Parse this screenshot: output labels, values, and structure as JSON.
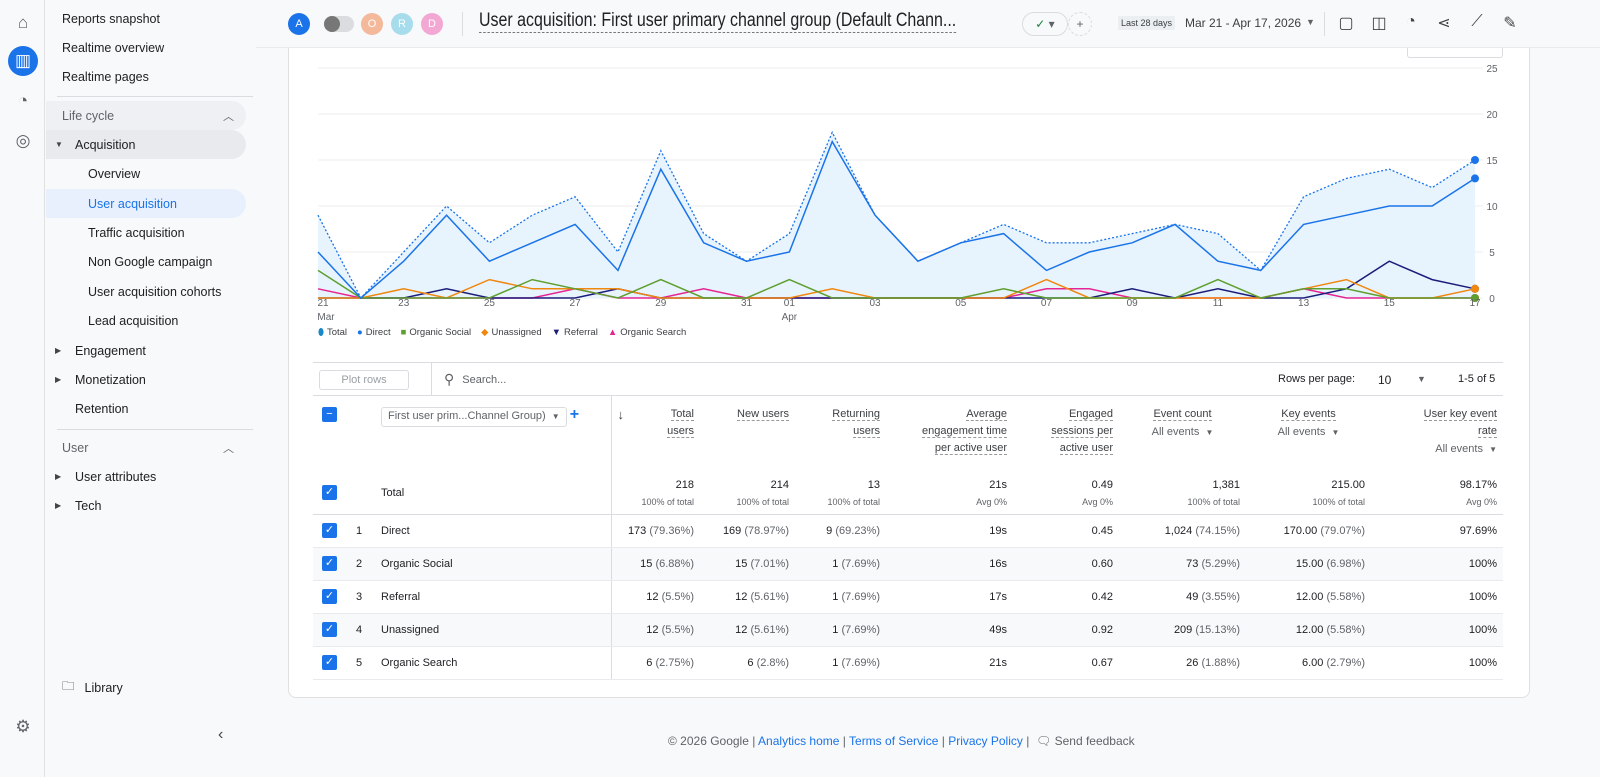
{
  "rail": {
    "icons": [
      "home-icon",
      "reports-icon",
      "explore-icon",
      "advertising-icon",
      "settings-icon"
    ]
  },
  "sidebar": {
    "top_items": [
      "Reports snapshot",
      "Realtime overview",
      "Realtime pages"
    ],
    "lifecycle": "Life cycle",
    "acquisition": "Acquisition",
    "acq_items": [
      "Overview",
      "User acquisition",
      "Traffic acquisition",
      "Non Google campaign",
      "User acquisition cohorts",
      "Lead acquisition"
    ],
    "engagement": "Engagement",
    "monetization": "Monetization",
    "retention": "Retention",
    "user_section": "User",
    "user_attributes": "User attributes",
    "tech": "Tech",
    "library": "Library"
  },
  "header": {
    "avatars": [
      {
        "letter": "A",
        "color": "#1a73e8"
      },
      {
        "letter": "O",
        "color": "#f4b89a"
      },
      {
        "letter": "R",
        "color": "#a6dcec"
      },
      {
        "letter": "D",
        "color": "#f2a8d2"
      }
    ],
    "title": "User acquisition: First user primary channel group (Default Chann...",
    "date_badge": "Last 28 days",
    "date_range": "Mar 21 - Apr 17, 2026"
  },
  "chart_data": {
    "type": "line",
    "x": [
      "21\nMar",
      "22",
      "23",
      "24",
      "25",
      "26",
      "27",
      "28",
      "29",
      "30",
      "31",
      "01\nApr",
      "02",
      "03",
      "04",
      "05",
      "06",
      "07",
      "08",
      "09",
      "10",
      "11",
      "12",
      "13",
      "14",
      "15",
      "16",
      "17"
    ],
    "x_tick_labels": [
      "21",
      "Mar",
      "23",
      "25",
      "27",
      "29",
      "31",
      "01",
      "Apr",
      "03",
      "05",
      "07",
      "09",
      "11",
      "13",
      "15",
      "17"
    ],
    "ylim": [
      0,
      25
    ],
    "y_ticks": [
      "0",
      "5",
      "10",
      "15",
      "20",
      "25"
    ],
    "series": [
      {
        "name": "Total",
        "color": "#1a73e8",
        "values": [
          9,
          0,
          5,
          10,
          6,
          9,
          11,
          5,
          16,
          7,
          4,
          7,
          18,
          9,
          4,
          6,
          8,
          6,
          6,
          7,
          8,
          7,
          3,
          11,
          13,
          14,
          12,
          15
        ]
      },
      {
        "name": "Direct",
        "color": "#1a73e8",
        "values": [
          5,
          0,
          4,
          9,
          4,
          6,
          8,
          3,
          14,
          6,
          4,
          5,
          17,
          9,
          4,
          6,
          7,
          3,
          5,
          6,
          8,
          4,
          3,
          8,
          9,
          10,
          10,
          13
        ]
      },
      {
        "name": "Organic Social",
        "color": "#5e9f2e",
        "values": [
          3,
          0,
          0,
          0,
          0,
          2,
          1,
          0,
          2,
          0,
          0,
          2,
          0,
          0,
          0,
          0,
          1,
          0,
          0,
          0,
          0,
          2,
          0,
          1,
          1,
          0,
          0,
          0
        ]
      },
      {
        "name": "Unassigned",
        "color": "#f0870f",
        "values": [
          0,
          0,
          1,
          0,
          2,
          1,
          1,
          1,
          0,
          0,
          0,
          0,
          1,
          0,
          0,
          0,
          0,
          2,
          0,
          0,
          0,
          0,
          0,
          1,
          2,
          0,
          0,
          1
        ]
      },
      {
        "name": "Referral",
        "color": "#1c1c7a",
        "values": [
          0,
          0,
          0,
          1,
          0,
          0,
          0,
          1,
          0,
          0,
          0,
          0,
          0,
          0,
          0,
          0,
          0,
          0,
          0,
          1,
          0,
          1,
          0,
          0,
          1,
          4,
          2,
          1
        ]
      },
      {
        "name": "Organic Search",
        "color": "#e52592",
        "values": [
          1,
          0,
          0,
          0,
          0,
          0,
          1,
          0,
          0,
          1,
          0,
          0,
          0,
          0,
          0,
          0,
          0,
          1,
          1,
          0,
          0,
          0,
          0,
          1,
          0,
          0,
          0,
          0
        ]
      }
    ]
  },
  "table": {
    "plot_rows": "Plot rows",
    "search_placeholder": "Search...",
    "rows_per_page_label": "Rows per page:",
    "rows_per_page": "10",
    "pagination": "1-5 of 5",
    "dimension": "First user prim...Channel Group)",
    "columns": [
      {
        "l1": "Total",
        "l2": "users",
        "sub": ""
      },
      {
        "l1": "New users",
        "l2": "",
        "sub": ""
      },
      {
        "l1": "Returning",
        "l2": "users",
        "sub": ""
      },
      {
        "l1": "Average",
        "l2": "engagement time",
        "l3": "per active user",
        "sub": ""
      },
      {
        "l1": "Engaged",
        "l2": "sessions per",
        "l3": "active user",
        "sub": ""
      },
      {
        "l1": "Event count",
        "l2": "",
        "sub": "All events"
      },
      {
        "l1": "Key events",
        "l2": "",
        "sub": "All events"
      },
      {
        "l1": "User key event",
        "l2": "rate",
        "sub": "All events"
      }
    ],
    "total": {
      "label": "Total",
      "values": [
        "218",
        "214",
        "13",
        "21s",
        "0.49",
        "1,381",
        "215.00",
        "98.17%"
      ],
      "subs": [
        "100% of total",
        "100% of total",
        "100% of total",
        "Avg 0%",
        "Avg 0%",
        "100% of total",
        "100% of total",
        "Avg 0%"
      ]
    },
    "rows": [
      {
        "rank": "1",
        "name": "Direct",
        "cells": [
          [
            "173",
            "(79.36%)"
          ],
          [
            "169",
            "(78.97%)"
          ],
          [
            "9",
            "(69.23%)"
          ],
          [
            "19s",
            ""
          ],
          [
            "0.45",
            ""
          ],
          [
            "1,024",
            "(74.15%)"
          ],
          [
            "170.00",
            "(79.07%)"
          ],
          [
            "97.69%",
            ""
          ]
        ]
      },
      {
        "rank": "2",
        "name": "Organic Social",
        "cells": [
          [
            "15",
            "(6.88%)"
          ],
          [
            "15",
            "(7.01%)"
          ],
          [
            "1",
            "(7.69%)"
          ],
          [
            "16s",
            ""
          ],
          [
            "0.60",
            ""
          ],
          [
            "73",
            "(5.29%)"
          ],
          [
            "15.00",
            "(6.98%)"
          ],
          [
            "100%",
            ""
          ]
        ]
      },
      {
        "rank": "3",
        "name": "Referral",
        "cells": [
          [
            "12",
            "(5.5%)"
          ],
          [
            "12",
            "(5.61%)"
          ],
          [
            "1",
            "(7.69%)"
          ],
          [
            "17s",
            ""
          ],
          [
            "0.42",
            ""
          ],
          [
            "49",
            "(3.55%)"
          ],
          [
            "12.00",
            "(5.58%)"
          ],
          [
            "100%",
            ""
          ]
        ]
      },
      {
        "rank": "4",
        "name": "Unassigned",
        "cells": [
          [
            "12",
            "(5.5%)"
          ],
          [
            "12",
            "(5.61%)"
          ],
          [
            "1",
            "(7.69%)"
          ],
          [
            "49s",
            ""
          ],
          [
            "0.92",
            ""
          ],
          [
            "209",
            "(15.13%)"
          ],
          [
            "12.00",
            "(5.58%)"
          ],
          [
            "100%",
            ""
          ]
        ]
      },
      {
        "rank": "5",
        "name": "Organic Search",
        "cells": [
          [
            "6",
            "(2.75%)"
          ],
          [
            "6",
            "(2.8%)"
          ],
          [
            "1",
            "(7.69%)"
          ],
          [
            "21s",
            ""
          ],
          [
            "0.67",
            ""
          ],
          [
            "26",
            "(1.88%)"
          ],
          [
            "6.00",
            "(2.79%)"
          ],
          [
            "100%",
            ""
          ]
        ]
      }
    ]
  },
  "footer": {
    "copyright": "© 2026 Google",
    "sep": "|",
    "analytics_home": "Analytics home",
    "terms": "Terms of Service",
    "privacy": "Privacy Policy",
    "feedback": "Send feedback"
  }
}
